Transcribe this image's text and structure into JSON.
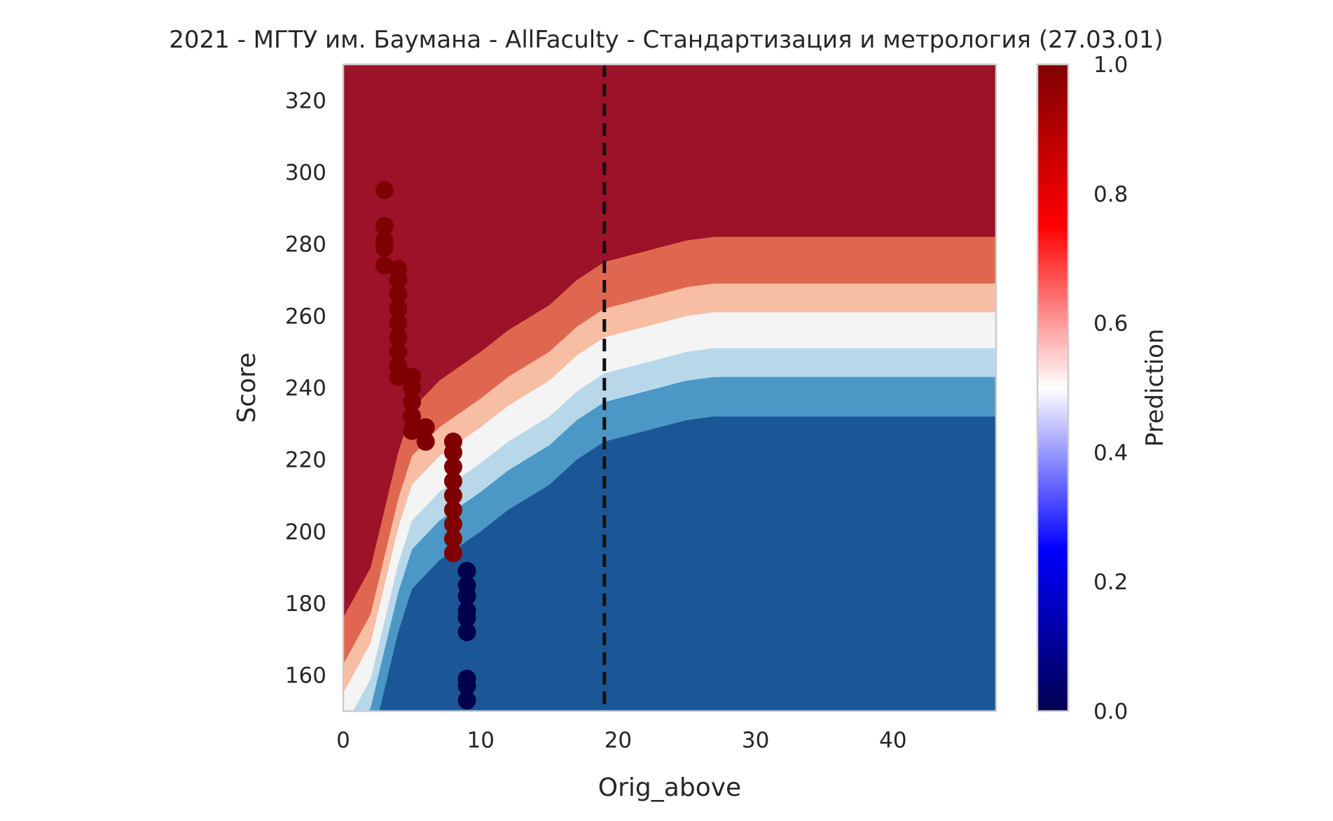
{
  "chart_data": {
    "type": "heatmap",
    "title": "2021 - МГТУ им. Баумана - AllFaculty - Стандартизация и метрология (27.03.01)",
    "xlabel": "Orig_above",
    "ylabel": "Score",
    "xlim": [
      0,
      47.5
    ],
    "ylim": [
      150,
      330
    ],
    "x_ticks": [
      0,
      10,
      20,
      30,
      40
    ],
    "y_ticks": [
      160,
      180,
      200,
      220,
      240,
      260,
      280,
      300,
      320
    ],
    "grid": false,
    "threshold_line": {
      "x": 19,
      "style": "dashed",
      "color": "#111111"
    },
    "contour_levels": [
      {
        "level": "0.0-0.15",
        "color": "#1b5796"
      },
      {
        "level": "0.15-0.3",
        "color": "#4b98c6"
      },
      {
        "level": "0.3-0.45",
        "color": "#b8d8ea"
      },
      {
        "level": "0.45-0.55",
        "color": "#f4f4f4"
      },
      {
        "level": "0.55-0.7",
        "color": "#f7bea4"
      },
      {
        "level": "0.7-0.85",
        "color": "#e0674f"
      },
      {
        "level": "0.85-1.0",
        "color": "#9c1229"
      }
    ],
    "boundary_05": [
      [
        0,
        150
      ],
      [
        2,
        164
      ],
      [
        3,
        180
      ],
      [
        4,
        196
      ],
      [
        5,
        208
      ],
      [
        7,
        216
      ],
      [
        10,
        224
      ],
      [
        12,
        230
      ],
      [
        15,
        237
      ],
      [
        17,
        244
      ],
      [
        19,
        249
      ],
      [
        22,
        252
      ],
      [
        25,
        255
      ],
      [
        27,
        256
      ],
      [
        47.5,
        256
      ]
    ],
    "band_offsets": [
      -24,
      -13,
      -5,
      5,
      13,
      26
    ],
    "points": {
      "admitted": [
        [
          3,
          295
        ],
        [
          3,
          285
        ],
        [
          3,
          281
        ],
        [
          3,
          279
        ],
        [
          3,
          274
        ],
        [
          4,
          273
        ],
        [
          4,
          270
        ],
        [
          4,
          266
        ],
        [
          4,
          262
        ],
        [
          4,
          258
        ],
        [
          4,
          254
        ],
        [
          4,
          250
        ],
        [
          4,
          246
        ],
        [
          4,
          243
        ],
        [
          5,
          243
        ],
        [
          5,
          240
        ],
        [
          5,
          236
        ],
        [
          5,
          232
        ],
        [
          5,
          228
        ],
        [
          6,
          229
        ],
        [
          6,
          225
        ],
        [
          8,
          225
        ],
        [
          8,
          222
        ],
        [
          8,
          218
        ],
        [
          8,
          214
        ],
        [
          8,
          210
        ],
        [
          8,
          206
        ],
        [
          8,
          202
        ],
        [
          8,
          198
        ],
        [
          8,
          194
        ]
      ],
      "not_admitted": [
        [
          9,
          189
        ],
        [
          9,
          185
        ],
        [
          9,
          182
        ],
        [
          9,
          178
        ],
        [
          9,
          176
        ],
        [
          9,
          172
        ],
        [
          9,
          159
        ],
        [
          9,
          157
        ],
        [
          9,
          153
        ]
      ],
      "admitted_color": "#7f0000",
      "not_admitted_color": "#00004c"
    },
    "colorbar": {
      "label": "Prediction",
      "range": [
        0,
        1
      ],
      "ticks": [
        "0.0",
        "0.2",
        "0.4",
        "0.6",
        "0.8",
        "1.0"
      ],
      "stops": [
        "#000050",
        "#0000ff",
        "#ffffff",
        "#ff0000",
        "#800000"
      ]
    }
  }
}
